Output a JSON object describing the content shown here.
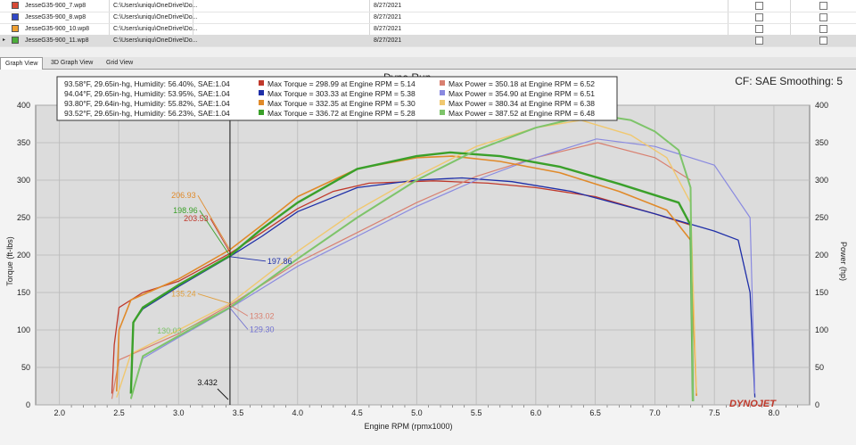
{
  "files": [
    {
      "name": "JesseG35-900_7.wp8",
      "path": "C:\\Users\\uniqu\\OneDrive\\Do...",
      "date": "8/27/2021",
      "color": "#d84a35"
    },
    {
      "name": "JesseG35-900_8.wp8",
      "path": "C:\\Users\\uniqu\\OneDrive\\Do...",
      "date": "8/27/2021",
      "color": "#3048c8"
    },
    {
      "name": "JesseG35-900_10.wp8",
      "path": "C:\\Users\\uniqu\\OneDrive\\Do...",
      "date": "8/27/2021",
      "color": "#f0a030"
    },
    {
      "name": "JesseG35-900_11.wp8",
      "path": "C:\\Users\\uniqu\\OneDrive\\Do...",
      "date": "8/27/2021",
      "color": "#4cae3a"
    }
  ],
  "tabs": [
    "Graph View",
    "3D Graph View",
    "Grid View"
  ],
  "header_right": "CF: SAE Smoothing: 5",
  "title_partial": "Dyno Run",
  "brand": "DYNOJET",
  "chart_data": {
    "type": "line",
    "xlabel": "Engine RPM (rpmx1000)",
    "ylabel_left": "Torque (ft-lbs)",
    "ylabel_right": "Power (hp)",
    "xlim": [
      1.8,
      8.3
    ],
    "ylim_left": [
      0,
      400
    ],
    "ylim_right": [
      0,
      400
    ],
    "x_ticks": [
      "2.0",
      "2.5",
      "3.0",
      "3.5",
      "4.0",
      "4.5",
      "5.0",
      "5.5",
      "6.0",
      "6.5",
      "7.0",
      "7.5",
      "8.0"
    ],
    "y_ticks": [
      "0",
      "50",
      "100",
      "150",
      "200",
      "250",
      "300",
      "350",
      "400"
    ],
    "grid": true,
    "cursor": {
      "rpm": 3.432,
      "label": "3.432"
    },
    "legend": [
      {
        "conditions": "93.58°F, 29.65in-hg, Humidity: 56.40%, SAE:1.04",
        "torque": "Max Torque = 298.99 at Engine RPM = 5.14",
        "power": "Max Power = 350.18 at Engine RPM = 6.52",
        "torque_color": "#c0392b",
        "power_color": "#d98070"
      },
      {
        "conditions": "94.04°F, 29.65in-hg, Humidity: 53.95%, SAE:1.04",
        "torque": "Max Torque = 303.33 at Engine RPM = 5.38",
        "power": "Max Power = 354.90 at Engine RPM = 6.51",
        "torque_color": "#1f2fa8",
        "power_color": "#8a8ae0"
      },
      {
        "conditions": "93.80°F, 29.64in-hg, Humidity: 55.82%, SAE:1.04",
        "torque": "Max Torque = 332.35 at Engine RPM = 5.30",
        "power": "Max Power = 380.34 at Engine RPM = 6.38",
        "torque_color": "#e08a2a",
        "power_color": "#f0c870"
      },
      {
        "conditions": "93.52°F, 29.65in-hg, Humidity: 56.23%, SAE:1.04",
        "torque": "Max Torque = 336.72 at Engine RPM = 5.28",
        "power": "Max Power = 387.52 at Engine RPM = 6.48",
        "torque_color": "#3aa02a",
        "power_color": "#7ec46a"
      }
    ],
    "series": [
      {
        "kind": "torque",
        "color": "#c0392b",
        "width": 1.3,
        "points": [
          [
            2.44,
            15
          ],
          [
            2.46,
            80
          ],
          [
            2.5,
            130
          ],
          [
            2.7,
            150
          ],
          [
            3.0,
            165
          ],
          [
            3.43,
            202
          ],
          [
            3.7,
            230
          ],
          [
            4.0,
            262
          ],
          [
            4.3,
            285
          ],
          [
            4.6,
            296
          ],
          [
            5.14,
            299
          ],
          [
            5.6,
            296
          ],
          [
            6.0,
            290
          ],
          [
            6.5,
            278
          ],
          [
            7.0,
            255
          ],
          [
            7.3,
            240
          ]
        ]
      },
      {
        "kind": "power",
        "color": "#d98070",
        "width": 1.2,
        "points": [
          [
            2.44,
            8
          ],
          [
            2.5,
            60
          ],
          [
            3.0,
            95
          ],
          [
            3.43,
            133
          ],
          [
            4.0,
            190
          ],
          [
            4.5,
            230
          ],
          [
            5.0,
            270
          ],
          [
            5.5,
            305
          ],
          [
            6.0,
            330
          ],
          [
            6.52,
            350
          ],
          [
            7.0,
            330
          ],
          [
            7.3,
            300
          ]
        ]
      },
      {
        "kind": "torque",
        "color": "#1f2fa8",
        "width": 1.3,
        "points": [
          [
            2.6,
            20
          ],
          [
            2.62,
            110
          ],
          [
            2.7,
            128
          ],
          [
            3.0,
            158
          ],
          [
            3.43,
            198
          ],
          [
            3.7,
            225
          ],
          [
            4.0,
            258
          ],
          [
            4.5,
            290
          ],
          [
            5.0,
            300
          ],
          [
            5.38,
            303
          ],
          [
            5.8,
            298
          ],
          [
            6.3,
            285
          ],
          [
            7.0,
            255
          ],
          [
            7.5,
            232
          ],
          [
            7.7,
            220
          ],
          [
            7.8,
            150
          ],
          [
            7.84,
            10
          ]
        ]
      },
      {
        "kind": "power",
        "color": "#8a8ae0",
        "width": 1.2,
        "points": [
          [
            2.6,
            10
          ],
          [
            2.7,
            62
          ],
          [
            3.0,
            90
          ],
          [
            3.43,
            129
          ],
          [
            4.0,
            185
          ],
          [
            4.5,
            225
          ],
          [
            5.0,
            265
          ],
          [
            5.5,
            300
          ],
          [
            6.0,
            330
          ],
          [
            6.51,
            355
          ],
          [
            7.0,
            345
          ],
          [
            7.5,
            320
          ],
          [
            7.8,
            250
          ],
          [
            7.84,
            15
          ]
        ]
      },
      {
        "kind": "torque",
        "color": "#e08a2a",
        "width": 1.6,
        "points": [
          [
            2.48,
            18
          ],
          [
            2.5,
            100
          ],
          [
            2.6,
            140
          ],
          [
            3.0,
            168
          ],
          [
            3.43,
            207
          ],
          [
            3.7,
            240
          ],
          [
            4.0,
            278
          ],
          [
            4.5,
            315
          ],
          [
            5.0,
            330
          ],
          [
            5.3,
            332
          ],
          [
            5.7,
            325
          ],
          [
            6.2,
            310
          ],
          [
            6.7,
            285
          ],
          [
            7.1,
            260
          ],
          [
            7.3,
            220
          ],
          [
            7.35,
            12
          ]
        ]
      },
      {
        "kind": "power",
        "color": "#f0c870",
        "width": 1.4,
        "points": [
          [
            2.48,
            10
          ],
          [
            2.6,
            68
          ],
          [
            3.0,
            100
          ],
          [
            3.43,
            135
          ],
          [
            4.0,
            205
          ],
          [
            4.5,
            260
          ],
          [
            5.0,
            305
          ],
          [
            5.5,
            345
          ],
          [
            6.0,
            370
          ],
          [
            6.38,
            380
          ],
          [
            6.8,
            360
          ],
          [
            7.1,
            330
          ],
          [
            7.3,
            270
          ],
          [
            7.35,
            15
          ]
        ]
      },
      {
        "kind": "torque",
        "color": "#3aa02a",
        "width": 2.4,
        "points": [
          [
            2.6,
            15
          ],
          [
            2.62,
            110
          ],
          [
            2.7,
            130
          ],
          [
            3.0,
            160
          ],
          [
            3.43,
            199
          ],
          [
            3.7,
            235
          ],
          [
            4.0,
            270
          ],
          [
            4.5,
            315
          ],
          [
            5.0,
            332
          ],
          [
            5.28,
            337
          ],
          [
            5.7,
            332
          ],
          [
            6.2,
            318
          ],
          [
            6.7,
            295
          ],
          [
            7.0,
            280
          ],
          [
            7.2,
            270
          ],
          [
            7.3,
            240
          ],
          [
            7.32,
            5
          ]
        ]
      },
      {
        "kind": "power",
        "color": "#7ec46a",
        "width": 2.0,
        "points": [
          [
            2.6,
            8
          ],
          [
            2.7,
            65
          ],
          [
            3.0,
            92
          ],
          [
            3.43,
            130
          ],
          [
            4.0,
            195
          ],
          [
            4.5,
            250
          ],
          [
            5.0,
            300
          ],
          [
            5.5,
            340
          ],
          [
            6.0,
            370
          ],
          [
            6.48,
            388
          ],
          [
            6.8,
            380
          ],
          [
            7.0,
            365
          ],
          [
            7.2,
            340
          ],
          [
            7.3,
            290
          ],
          [
            7.32,
            5
          ]
        ]
      }
    ],
    "annotations": [
      {
        "text": "206.93",
        "color": "#e08a2a"
      },
      {
        "text": "198.96",
        "color": "#3aa02a"
      },
      {
        "text": "203.53",
        "color": "#c0392b"
      },
      {
        "text": "135.24",
        "color": "#e0a040"
      },
      {
        "text": "197.86",
        "color": "#1f2fa8"
      },
      {
        "text": "133.02",
        "color": "#d98070"
      },
      {
        "text": "129.30",
        "color": "#7070d0"
      },
      {
        "text": "130.03",
        "color": "#7ec46a"
      }
    ]
  }
}
